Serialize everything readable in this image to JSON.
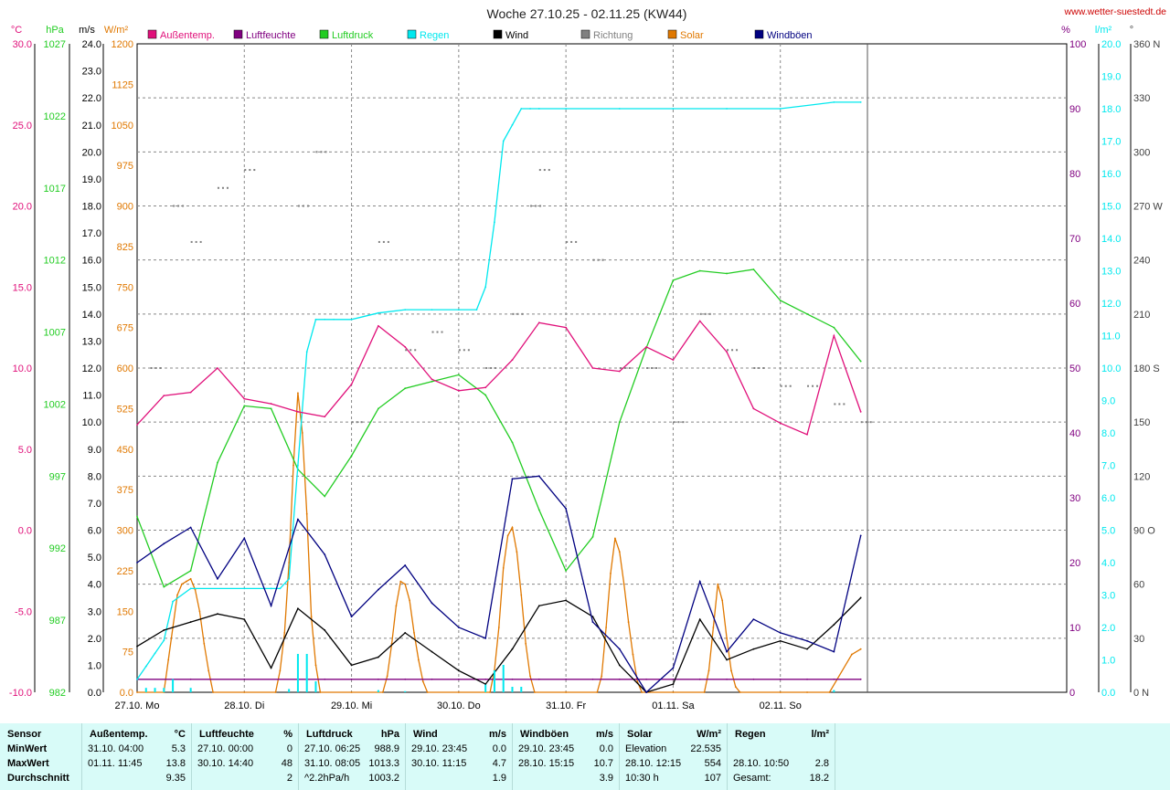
{
  "title": "Woche 27.10.25 - 02.11.25 (KW44)",
  "site": "www.wetter-suestedt.de",
  "colors": {
    "temp": "#e0107a",
    "hum": "#800080",
    "press": "#22cc22",
    "rain": "#00e8ee",
    "wind": "#000000",
    "dir": "#808080",
    "solar": "#e07800",
    "gust": "#000080",
    "grid": "#888888",
    "stats_bg": "#d8fbf8"
  },
  "axes": {
    "temp": {
      "unit": "°C",
      "ticks": [
        "30.0",
        "25.0",
        "20.0",
        "15.0",
        "10.0",
        "5.0",
        "0.0",
        "-5.0",
        "-10.0"
      ]
    },
    "press": {
      "unit": "hPa",
      "ticks": [
        "1027",
        "1022",
        "1017",
        "1012",
        "1007",
        "1002",
        "997",
        "992",
        "987",
        "982"
      ]
    },
    "wind": {
      "unit": "m/s",
      "ticks": [
        "24.0",
        "23.0",
        "22.0",
        "21.0",
        "20.0",
        "19.0",
        "18.0",
        "17.0",
        "16.0",
        "15.0",
        "14.0",
        "13.0",
        "12.0",
        "11.0",
        "10.0",
        "9.0",
        "8.0",
        "7.0",
        "6.0",
        "5.0",
        "4.0",
        "3.0",
        "2.0",
        "1.0",
        "0.0"
      ]
    },
    "solar": {
      "unit": "W/m²",
      "ticks": [
        "1200",
        "1125",
        "1050",
        "975",
        "900",
        "825",
        "750",
        "675",
        "600",
        "525",
        "450",
        "375",
        "300",
        "225",
        "150",
        "75",
        "0.0"
      ]
    },
    "hum": {
      "unit": "%",
      "ticks": [
        "100",
        "90",
        "80",
        "70",
        "60",
        "50",
        "40",
        "30",
        "20",
        "10",
        "0"
      ]
    },
    "rain": {
      "unit": "l/m²",
      "ticks": [
        "20.0",
        "19.0",
        "18.0",
        "17.0",
        "16.0",
        "15.0",
        "14.0",
        "13.0",
        "12.0",
        "11.0",
        "10.0",
        "9.0",
        "8.0",
        "7.0",
        "6.0",
        "5.0",
        "4.0",
        "3.0",
        "2.0",
        "1.0",
        "0.0"
      ]
    },
    "dir": {
      "unit": "°",
      "ticks": [
        "360 N",
        "330",
        "300",
        "270 W",
        "240",
        "210",
        "180 S",
        "150",
        "120",
        "90 O",
        "60",
        "30",
        "0 N"
      ]
    }
  },
  "legend": [
    "Außentemp.",
    "Luftfeuchte",
    "Luftdruck",
    "Regen",
    "Wind",
    "Richtung",
    "Solar",
    "Windböen"
  ],
  "days": [
    "27.10.  Mo",
    "28.10.  Di",
    "29.10.  Mi",
    "30.10.  Do",
    "31.10.  Fr",
    "01.11.  Sa",
    "02.11.  So"
  ],
  "chart_data": {
    "type": "line",
    "x_unit": "hours since 27.10. 00:00",
    "series": [
      {
        "name": "Außentemp.",
        "axis": "°C",
        "x": [
          0,
          6,
          12,
          18,
          24,
          30,
          36,
          42,
          48,
          54,
          60,
          66,
          72,
          78,
          84,
          90,
          96,
          102,
          108,
          114,
          120,
          126,
          132,
          138,
          144,
          150,
          156,
          162
        ],
        "values": [
          6.5,
          8.3,
          8.5,
          10.0,
          8.1,
          7.8,
          7.3,
          7.0,
          9.0,
          12.6,
          11.3,
          9.3,
          8.6,
          8.8,
          10.5,
          12.8,
          12.5,
          10.0,
          9.8,
          11.3,
          10.5,
          12.9,
          11.0,
          7.5,
          6.6,
          5.9,
          12.0,
          7.3
        ]
      },
      {
        "name": "Luftfeuchte",
        "axis": "%",
        "x": [
          0,
          12,
          24,
          36,
          42,
          48,
          54,
          60,
          66,
          72,
          78,
          84,
          90,
          96,
          102,
          108,
          114,
          120,
          126,
          132,
          138,
          144,
          150,
          156,
          162
        ],
        "values": [
          2,
          2,
          2,
          2,
          2,
          2,
          2,
          2,
          2,
          2,
          2,
          2,
          2,
          2,
          2,
          2,
          2,
          2,
          2,
          2,
          2,
          2,
          2,
          2,
          2
        ]
      },
      {
        "name": "Luftdruck",
        "axis": "hPa",
        "x": [
          0,
          6,
          12,
          18,
          24,
          30,
          36,
          42,
          48,
          54,
          60,
          66,
          72,
          78,
          84,
          90,
          96,
          102,
          108,
          114,
          120,
          126,
          132,
          138,
          144,
          150,
          156,
          162
        ],
        "values": [
          995.0,
          989.8,
          991.0,
          999.0,
          1003.2,
          1003.0,
          998.5,
          996.5,
          999.5,
          1003.0,
          1004.5,
          1005.0,
          1005.5,
          1004.0,
          1000.5,
          995.5,
          991.0,
          993.5,
          1002.0,
          1007.5,
          1012.5,
          1013.2,
          1013.0,
          1013.3,
          1011.0,
          1010.0,
          1009.0,
          1006.5
        ]
      },
      {
        "name": "Regen",
        "axis": "l/m²",
        "x": [
          0,
          2,
          4,
          6,
          8,
          12,
          24,
          30,
          32,
          34,
          36,
          38,
          40,
          42,
          44,
          48,
          54,
          60,
          66,
          72,
          76,
          78,
          80,
          82,
          84,
          86,
          88,
          90,
          96,
          108,
          120,
          132,
          144,
          156,
          162
        ],
        "values": [
          0.4,
          0.8,
          1.2,
          1.6,
          2.8,
          3.2,
          3.2,
          3.2,
          3.2,
          3.5,
          7.0,
          10.5,
          11.5,
          11.5,
          11.5,
          11.5,
          11.7,
          11.8,
          11.8,
          11.8,
          11.8,
          12.5,
          14.5,
          17.0,
          17.5,
          18.0,
          18.0,
          18.0,
          18.0,
          18.0,
          18.0,
          18.0,
          18.0,
          18.2,
          18.2
        ]
      },
      {
        "name": "Wind",
        "axis": "m/s",
        "x": [
          0,
          6,
          12,
          18,
          24,
          30,
          36,
          42,
          48,
          54,
          60,
          66,
          72,
          78,
          84,
          90,
          96,
          102,
          108,
          114,
          120,
          126,
          132,
          138,
          144,
          150,
          156,
          162
        ],
        "values": [
          1.7,
          2.3,
          2.6,
          2.9,
          2.7,
          0.9,
          3.1,
          2.3,
          1.0,
          1.3,
          2.2,
          1.5,
          0.8,
          0.3,
          1.6,
          3.2,
          3.4,
          2.8,
          1.0,
          0.0,
          0.3,
          2.7,
          1.2,
          1.6,
          1.9,
          1.6,
          2.5,
          3.5
        ]
      },
      {
        "name": "Windböen",
        "axis": "m/s",
        "x": [
          0,
          6,
          12,
          18,
          24,
          30,
          36,
          42,
          48,
          54,
          60,
          66,
          72,
          78,
          84,
          90,
          96,
          102,
          108,
          114,
          120,
          126,
          132,
          138,
          144,
          150,
          156,
          162
        ],
        "values": [
          4.8,
          5.5,
          6.1,
          4.2,
          5.7,
          3.2,
          6.4,
          5.1,
          2.8,
          3.8,
          4.7,
          3.3,
          2.4,
          2.0,
          7.9,
          8.0,
          6.8,
          2.6,
          1.6,
          0.0,
          0.9,
          4.1,
          1.5,
          2.7,
          2.2,
          1.9,
          1.5,
          5.8
        ]
      },
      {
        "name": "Solar",
        "axis": "W/m²",
        "x": [
          0,
          6,
          7,
          8,
          9,
          10,
          11,
          12,
          13,
          14,
          15,
          16,
          17,
          24,
          31,
          32,
          33,
          34,
          35,
          36,
          37,
          38,
          39,
          40,
          41,
          48,
          55,
          56,
          57,
          58,
          59,
          60,
          61,
          62,
          63,
          64,
          65,
          72,
          79,
          80,
          81,
          82,
          83,
          84,
          85,
          86,
          87,
          88,
          89,
          96,
          103,
          104,
          105,
          106,
          107,
          108,
          109,
          110,
          111,
          112,
          113,
          120,
          127,
          128,
          129,
          130,
          131,
          132,
          133,
          134,
          135,
          144,
          150,
          155,
          160,
          162
        ],
        "values": [
          0,
          0,
          60,
          120,
          180,
          200,
          205,
          210,
          190,
          150,
          90,
          40,
          0,
          0,
          0,
          40,
          110,
          240,
          420,
          554,
          480,
          330,
          140,
          50,
          0,
          0,
          0,
          30,
          90,
          160,
          205,
          200,
          170,
          110,
          60,
          20,
          0,
          0,
          0,
          40,
          120,
          230,
          290,
          305,
          260,
          180,
          90,
          30,
          0,
          0,
          0,
          30,
          120,
          220,
          285,
          260,
          200,
          130,
          70,
          20,
          0,
          0,
          0,
          40,
          120,
          200,
          170,
          100,
          40,
          10,
          0,
          0,
          0,
          0,
          70,
          80
        ]
      },
      {
        "name": "Richtung",
        "axis": "°",
        "x": [
          3,
          8,
          12,
          18,
          24,
          36,
          40,
          48,
          54,
          60,
          66,
          72,
          78,
          84,
          88,
          90,
          96,
          102,
          108,
          114,
          120,
          126,
          132,
          138,
          144,
          150,
          156,
          162
        ],
        "values": [
          180,
          270,
          250,
          280,
          290,
          270,
          300,
          150,
          250,
          190,
          200,
          190,
          180,
          210,
          270,
          290,
          250,
          240,
          180,
          180,
          150,
          210,
          190,
          180,
          170,
          170,
          160,
          150
        ]
      }
    ],
    "stats": {
      "sensor": {
        "label": "Sensor",
        "rows": [
          "MinWert",
          "MaxWert",
          "Durchschnitt"
        ]
      },
      "temp": {
        "label": "Außentemp.",
        "unit": "°C",
        "rows": [
          [
            "31.10.  04:00",
            "5.3"
          ],
          [
            "01.11.  11:45",
            "13.8"
          ],
          [
            "",
            "9.35"
          ]
        ]
      },
      "hum": {
        "label": "Luftfeuchte",
        "unit": "%",
        "rows": [
          [
            "27.10.  00:00",
            "0"
          ],
          [
            "30.10.  14:40",
            "48"
          ],
          [
            "",
            "2"
          ]
        ]
      },
      "press": {
        "label": "Luftdruck",
        "unit": "hPa",
        "rows": [
          [
            "27.10.  06:25",
            "988.9"
          ],
          [
            "31.10.  08:05",
            "1013.3"
          ],
          [
            "^2.2hPa/h",
            "1003.2"
          ]
        ]
      },
      "wind": {
        "label": "Wind",
        "unit": "m/s",
        "rows": [
          [
            "29.10.  23:45",
            "0.0"
          ],
          [
            "30.10.  11:15",
            "4.7"
          ],
          [
            "",
            "1.9"
          ]
        ]
      },
      "gust": {
        "label": "Windböen",
        "unit": "m/s",
        "rows": [
          [
            "29.10.  23:45",
            "0.0"
          ],
          [
            "28.10.  15:15",
            "10.7"
          ],
          [
            "",
            "3.9"
          ]
        ]
      },
      "solar": {
        "label": "Solar",
        "unit": "W/m²",
        "rows": [
          [
            "Elevation",
            "22.535"
          ],
          [
            "28.10.  12:15",
            "554"
          ],
          [
            "10:30 h",
            "107"
          ]
        ]
      },
      "rain": {
        "label": "Regen",
        "unit": "l/m²",
        "rows": [
          [
            "",
            ""
          ],
          [
            "28.10.  10:50",
            "2.8"
          ],
          [
            "Gesamt:",
            "18.2"
          ]
        ]
      }
    }
  }
}
